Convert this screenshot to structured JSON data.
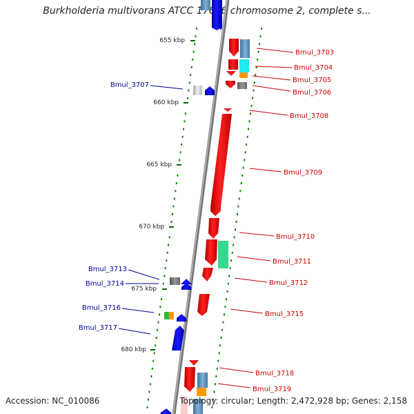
{
  "title": "Burkholderia multivorans ATCC 17616 chromosome 2, complete s...",
  "accession": "Accession: NC_010086",
  "topology": "Topology: circular; Length: 2,472,928 bp; Genes: 2,158",
  "ticks": [
    "655 kbp",
    "660 kbp",
    "665 kbp",
    "670 kbp",
    "675 kbp",
    "680 kbp"
  ],
  "genes_right": [
    "Bmul_3703",
    "Bmul_3704",
    "Bmul_3705",
    "Bmul_3706",
    "Bmul_3708",
    "Bmul_3709",
    "Bmul_3710",
    "Bmul_3711",
    "Bmul_3712",
    "Bmul_3715",
    "Bmul_3718",
    "Bmul_3719"
  ],
  "genes_left": [
    "Bmul_3707",
    "Bmul_3713",
    "Bmul_3714",
    "Bmul_3716",
    "Bmul_3717"
  ],
  "colors": {
    "forward": "#ee0000",
    "reverse": "#0000ee",
    "right_label": "#cc0000",
    "left_label": "#000099",
    "backbone": "#888888",
    "dots": "#008800"
  }
}
